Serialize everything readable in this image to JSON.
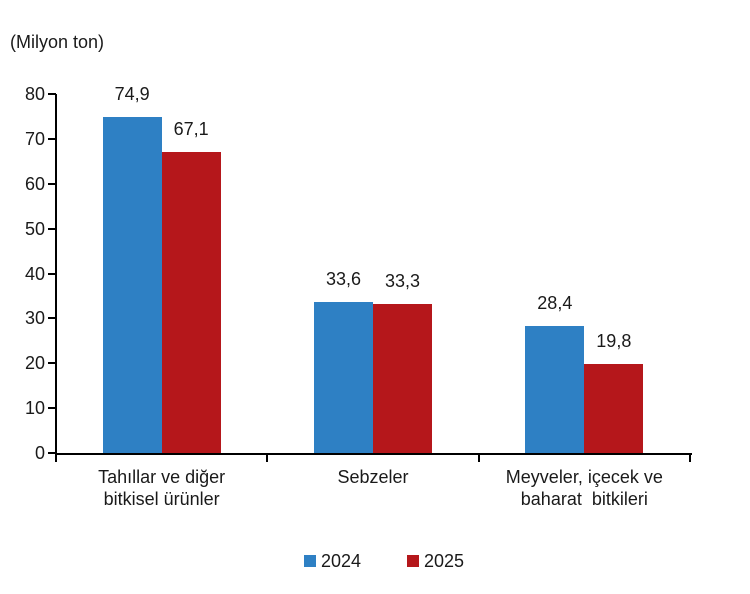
{
  "chart_data": {
    "type": "bar",
    "unit_label": "(Milyon ton)",
    "categories": [
      "Tahıllar ve diğer bitkisel ürünler",
      "Sebzeler",
      "Meyveler, içecek ve baharat bitkileri"
    ],
    "category_lines": [
      [
        "Tahıllar ve diğer",
        "bitkisel ürünler"
      ],
      [
        "Sebzeler"
      ],
      [
        "Meyveler, içecek ve",
        "baharat  bitkileri"
      ]
    ],
    "series": [
      {
        "name": "2024",
        "color": "#2E80C4",
        "values": [
          74.9,
          33.6,
          28.4
        ],
        "value_labels": [
          "74,9",
          "33,6",
          "28,4"
        ]
      },
      {
        "name": "2025",
        "color": "#B5171B",
        "values": [
          67.1,
          33.3,
          19.8
        ],
        "value_labels": [
          "67,1",
          "33,3",
          "19,8"
        ]
      }
    ],
    "ylim": [
      0,
      80
    ],
    "yticks": [
      0,
      10,
      20,
      30,
      40,
      50,
      60,
      70,
      80
    ],
    "grid": false,
    "legend_position": "bottom",
    "axis_color": "#000000",
    "text_color": "#1a1a1a"
  }
}
